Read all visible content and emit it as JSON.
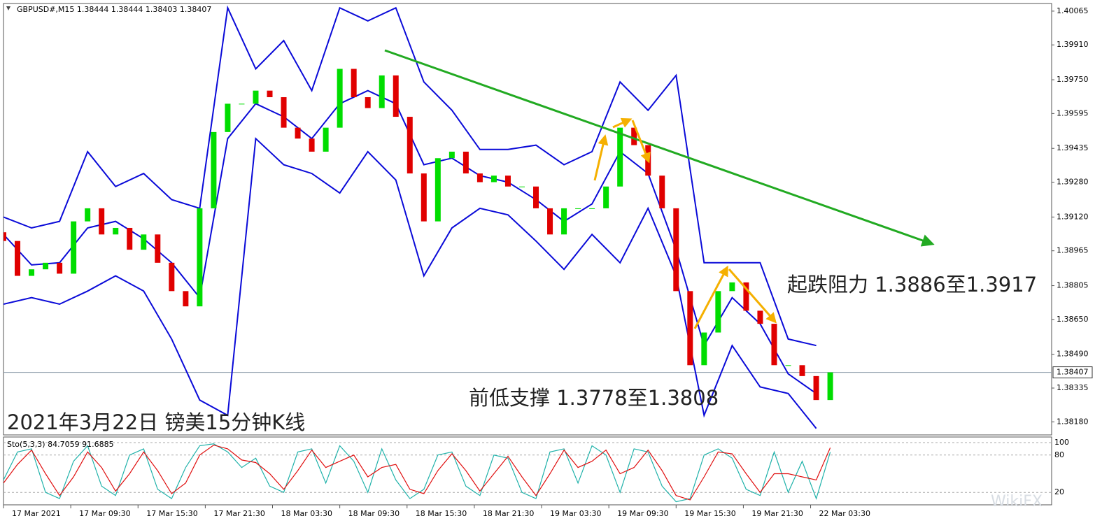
{
  "chart_data": [
    {
      "type": "candlestick",
      "title": "GBPUSD#,M15  1.38444 1.38444 1.38403 1.38407",
      "x": [
        0,
        5,
        10,
        15,
        20,
        25,
        30,
        35,
        40,
        45,
        50,
        55,
        60,
        65,
        70,
        75,
        80,
        85,
        90,
        95,
        100,
        105,
        110,
        115,
        120,
        125,
        130,
        135,
        140,
        145,
        150,
        155,
        160,
        165,
        170,
        175,
        180,
        185,
        190,
        195,
        200,
        205,
        210,
        215,
        220,
        225,
        230,
        235,
        240,
        245,
        250,
        255,
        260,
        265,
        270,
        275,
        280,
        285,
        290,
        295
      ],
      "open": [
        1.3905,
        1.3901,
        1.3885,
        1.3888,
        1.3891,
        1.3886,
        1.391,
        1.3916,
        1.3904,
        1.3907,
        1.3897,
        1.3904,
        1.3891,
        1.3878,
        1.3871,
        1.3916,
        1.3951,
        1.3964,
        1.3964,
        1.397,
        1.3967,
        1.3953,
        1.3948,
        1.3942,
        1.3953,
        1.398,
        1.3967,
        1.3962,
        1.3977,
        1.3958,
        1.3932,
        1.391,
        1.3939,
        1.3942,
        1.3932,
        1.3928,
        1.3931,
        1.3926,
        1.3926,
        1.3916,
        1.3904,
        1.3916,
        1.3916,
        1.3916,
        1.3926,
        1.3953,
        1.3945,
        1.3931,
        1.3916,
        1.3878,
        1.3844,
        1.3859,
        1.3878,
        1.3882,
        1.3869,
        1.3863,
        1.3844,
        1.3844,
        1.3839,
        1.3828
      ],
      "close": [
        1.3901,
        1.3885,
        1.3888,
        1.3891,
        1.3886,
        1.391,
        1.3916,
        1.3904,
        1.3907,
        1.3897,
        1.3904,
        1.3891,
        1.3878,
        1.3871,
        1.3916,
        1.3951,
        1.3964,
        1.3964,
        1.397,
        1.3967,
        1.3953,
        1.3948,
        1.3942,
        1.3953,
        1.398,
        1.3967,
        1.3962,
        1.3977,
        1.3958,
        1.3932,
        1.391,
        1.3939,
        1.3942,
        1.3932,
        1.3928,
        1.3931,
        1.3926,
        1.3926,
        1.3916,
        1.3904,
        1.3916,
        1.3916,
        1.3916,
        1.3926,
        1.3953,
        1.3945,
        1.3931,
        1.3916,
        1.3878,
        1.3844,
        1.3859,
        1.3878,
        1.3882,
        1.3869,
        1.3863,
        1.3844,
        1.3844,
        1.3839,
        1.3828,
        1.38407
      ],
      "up_color": "#00dd00",
      "down_color": "#e00000",
      "bands": {
        "color": "#0a0ad8",
        "x": [
          0,
          10,
          20,
          30,
          40,
          50,
          60,
          70,
          80,
          90,
          100,
          110,
          120,
          130,
          140,
          150,
          160,
          170,
          180,
          190,
          200,
          210,
          220,
          230,
          240,
          250,
          260,
          270,
          280,
          290
        ],
        "upper": [
          1.3912,
          1.3907,
          1.391,
          1.3942,
          1.3926,
          1.3932,
          1.392,
          1.3916,
          1.4008,
          1.398,
          1.3993,
          1.397,
          1.4008,
          1.4002,
          1.4008,
          1.3974,
          1.3961,
          1.3943,
          1.3943,
          1.3945,
          1.3936,
          1.3942,
          1.3974,
          1.3961,
          1.3977,
          1.3891,
          1.3891,
          1.3891,
          1.3856,
          1.3853
        ],
        "middle": [
          1.3904,
          1.389,
          1.3891,
          1.3907,
          1.391,
          1.3902,
          1.3891,
          1.3875,
          1.3948,
          1.3964,
          1.3958,
          1.3948,
          1.3964,
          1.397,
          1.3964,
          1.3936,
          1.3939,
          1.3931,
          1.3928,
          1.392,
          1.391,
          1.3918,
          1.3942,
          1.3932,
          1.3897,
          1.3853,
          1.3875,
          1.3863,
          1.384,
          1.3831
        ],
        "lower": [
          1.3872,
          1.3875,
          1.3872,
          1.3878,
          1.3885,
          1.3878,
          1.3856,
          1.3828,
          1.3821,
          1.3948,
          1.3936,
          1.3932,
          1.3923,
          1.3942,
          1.3929,
          1.3885,
          1.3907,
          1.3916,
          1.3913,
          1.3901,
          1.3888,
          1.3904,
          1.3891,
          1.3916,
          1.3885,
          1.3821,
          1.3853,
          1.3834,
          1.3831,
          1.3815
        ]
      },
      "xlim": [
        0,
        374
      ],
      "ylim": [
        1.3812,
        1.401
      ],
      "yticks": [
        1.40065,
        {
          "value": 1.3991,
          "label": "1.39910"
        },
        {
          "value": 1.3975,
          "label": "1.39750"
        },
        1.39595,
        1.39435,
        {
          "value": 1.3928,
          "label": "1.39280"
        },
        {
          "value": 1.3912,
          "label": "1.39120"
        },
        1.38965,
        1.38805,
        {
          "value": 1.3865,
          "label": "1.38650"
        },
        {
          "value": 1.3849,
          "label": "1.38490"
        },
        1.38335,
        {
          "value": 1.3818,
          "label": "1.38180"
        }
      ],
      "current_price": 1.38407,
      "xticks": [
        {
          "value": 0,
          "label": "17 Mar 2021"
        },
        {
          "value": 24,
          "label": "17 Mar 09:30"
        },
        {
          "value": 48,
          "label": "17 Mar 15:30"
        },
        {
          "value": 72,
          "label": "17 Mar 21:30"
        },
        {
          "value": 96,
          "label": "18 Mar 03:30"
        },
        {
          "value": 120,
          "label": "18 Mar 09:30"
        },
        {
          "value": 144,
          "label": "18 Mar 15:30"
        },
        {
          "value": 168,
          "label": "18 Mar 21:30"
        },
        {
          "value": 192,
          "label": "19 Mar 03:30"
        },
        {
          "value": 216,
          "label": "19 Mar 09:30"
        },
        {
          "value": 240,
          "label": "19 Mar 15:30"
        },
        {
          "value": 264,
          "label": "19 Mar 21:30"
        },
        {
          "value": 288,
          "label": "22 Mar 03:30"
        }
      ],
      "annotations": [
        "起跌阻力 1.3886至1.3917",
        "前低支撑 1.3778至1.3808",
        "2021年3月22日 镑美15分钟K线"
      ],
      "watermark": "WikiFX"
    },
    {
      "type": "line",
      "title": "Sto(5,3,3) 84.7059 91.6885",
      "x": [
        0,
        5,
        10,
        15,
        20,
        25,
        30,
        35,
        40,
        45,
        50,
        55,
        60,
        65,
        70,
        75,
        80,
        85,
        90,
        95,
        100,
        105,
        110,
        115,
        120,
        125,
        130,
        135,
        140,
        145,
        150,
        155,
        160,
        165,
        170,
        175,
        180,
        185,
        190,
        195,
        200,
        205,
        210,
        215,
        220,
        225,
        230,
        235,
        240,
        245,
        250,
        255,
        260,
        265,
        270,
        275,
        280,
        285,
        290,
        295
      ],
      "series": [
        {
          "color": "#20b2aa",
          "values": [
            40,
            85,
            90,
            20,
            10,
            70,
            95,
            30,
            15,
            80,
            90,
            25,
            10,
            60,
            95,
            98,
            85,
            60,
            75,
            30,
            20,
            85,
            90,
            35,
            95,
            70,
            20,
            90,
            40,
            10,
            25,
            80,
            85,
            30,
            15,
            80,
            75,
            20,
            10,
            85,
            90,
            35,
            95,
            80,
            20,
            90,
            85,
            30,
            5,
            10,
            80,
            90,
            75,
            25,
            15,
            85,
            20,
            70,
            10,
            84.7059
          ]
        },
        {
          "color": "#e01010",
          "values": [
            35,
            65,
            88,
            50,
            15,
            45,
            85,
            60,
            22,
            50,
            85,
            55,
            18,
            35,
            80,
            96,
            90,
            72,
            68,
            50,
            25,
            55,
            88,
            60,
            70,
            80,
            45,
            60,
            65,
            25,
            18,
            55,
            82,
            55,
            22,
            50,
            78,
            45,
            15,
            50,
            88,
            60,
            70,
            88,
            50,
            60,
            88,
            55,
            15,
            8,
            45,
            85,
            82,
            50,
            20,
            50,
            50,
            45,
            40,
            91.6885
          ]
        }
      ],
      "xlim": [
        0,
        374
      ],
      "ylim": [
        0,
        109
      ],
      "yticks": [
        20,
        80,
        100
      ]
    }
  ]
}
